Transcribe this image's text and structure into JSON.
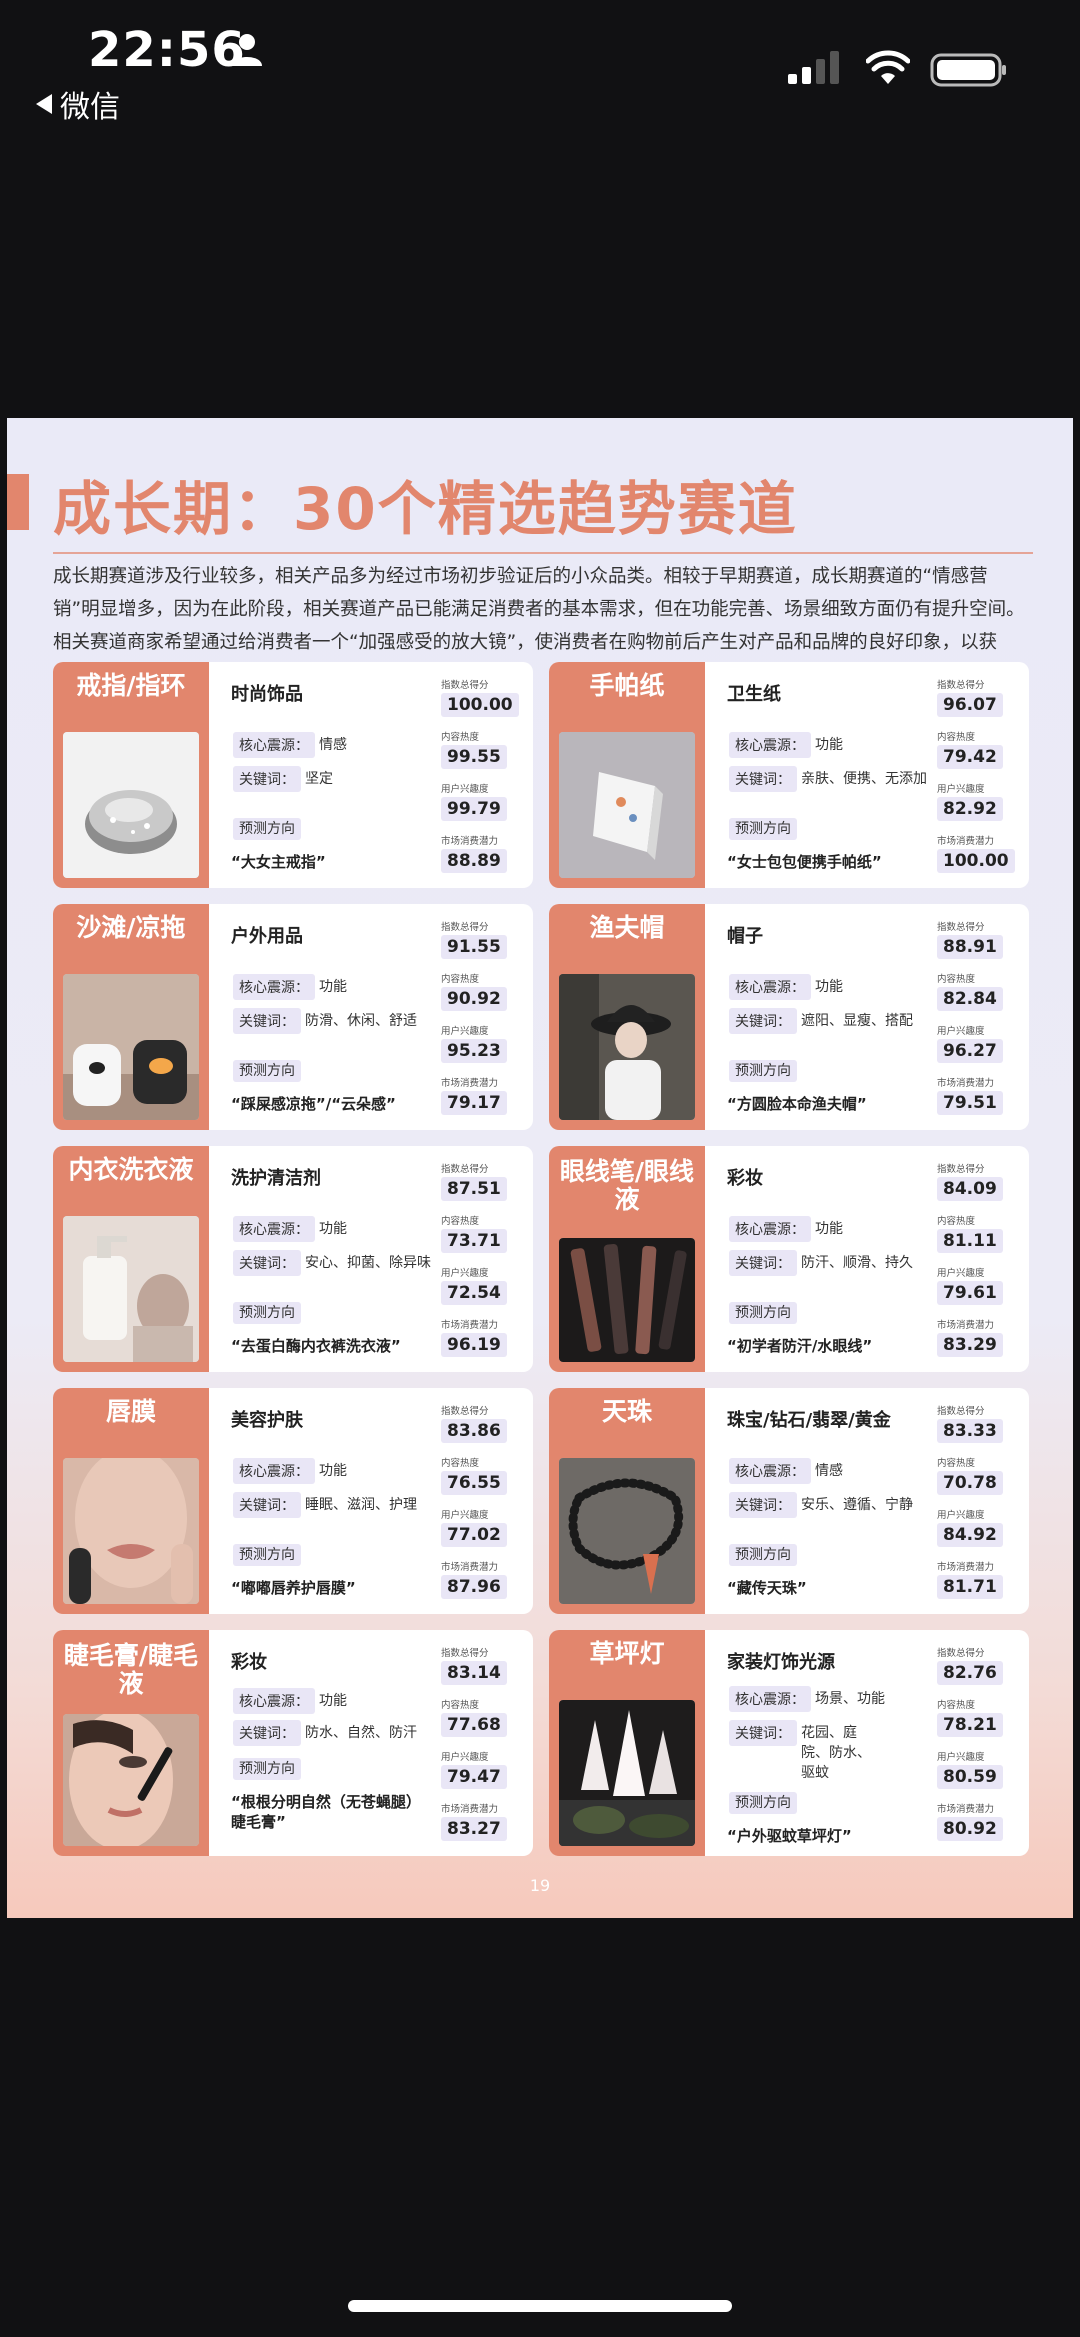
{
  "status_bar": {
    "time": "22:56",
    "back_label": "微信",
    "icons": [
      "person-icon",
      "signal-icon",
      "wifi-icon",
      "battery-icon"
    ]
  },
  "colors": {
    "accent": "#e2866d",
    "tag_bg": "#e9e6f6",
    "background": "#111113"
  },
  "page": {
    "title": "成长期：30个精选趋势赛道",
    "intro": "成长期赛道涉及行业较多，相关产品多为经过市场初步验证后的小众品类。相较于早期赛道，成长期赛道的“情感营销”明显增多，因为在此阶段，相关赛道产品已能满足消费者的基本需求，但在功能完善、场景细致方面仍有提升空间。相关赛道商家希望通过给消费者一个“加强感受的放大镜”，使消费者在购物前后产生对产品和品牌的良好印象，以获得“加分”。",
    "labels": {
      "core_label": "核心震源：",
      "keyword_label": "关键词：",
      "forecast_label": "预测方向",
      "total_label": "指数总得分",
      "heat_label": "内容热度",
      "interest_label": "用户兴趣度",
      "potential_label": "市场消费潜力"
    },
    "page_number": "19"
  },
  "cards": [
    {
      "category": "戒指/指环",
      "industry": "时尚饰品",
      "core": "情感",
      "keywords": "坚定",
      "prediction": "“大女主戒指”",
      "total": "100.00",
      "heat": "99.55",
      "interest": "99.79",
      "potential": "88.89"
    },
    {
      "category": "手帕纸",
      "industry": "卫生纸",
      "core": "功能",
      "keywords": "亲肤、便携、无添加",
      "prediction": "“女士包包便携手帕纸”",
      "total": "96.07",
      "heat": "79.42",
      "interest": "82.92",
      "potential": "100.00"
    },
    {
      "category": "沙滩/凉拖",
      "industry": "户外用品",
      "core": "功能",
      "keywords": "防滑、休闲、舒适",
      "prediction": "“踩屎感凉拖”/“云朵感”",
      "total": "91.55",
      "heat": "90.92",
      "interest": "95.23",
      "potential": "79.17"
    },
    {
      "category": "渔夫帽",
      "industry": "帽子",
      "core": "功能",
      "keywords": "遮阳、显瘦、搭配",
      "prediction": "“方圆脸本命渔夫帽”",
      "total": "88.91",
      "heat": "82.84",
      "interest": "96.27",
      "potential": "79.51"
    },
    {
      "category": "内衣洗衣液",
      "industry": "洗护清洁剂",
      "core": "功能",
      "keywords": "安心、抑菌、除异味",
      "prediction": "“去蛋白酶内衣裤洗衣液”",
      "total": "87.51",
      "heat": "73.71",
      "interest": "72.54",
      "potential": "96.19"
    },
    {
      "category": "眼线笔/眼线液",
      "industry": "彩妆",
      "core": "功能",
      "keywords": "防汗、顺滑、持久",
      "prediction": "“初学者防汗/水眼线”",
      "total": "84.09",
      "heat": "81.11",
      "interest": "79.61",
      "potential": "83.29"
    },
    {
      "category": "唇膜",
      "industry": "美容护肤",
      "core": "功能",
      "keywords": "睡眠、滋润、护理",
      "prediction": "“嘟嘟唇养护唇膜”",
      "total": "83.86",
      "heat": "76.55",
      "interest": "77.02",
      "potential": "87.96"
    },
    {
      "category": "天珠",
      "industry": "珠宝/钻石/翡翠/黄金",
      "core": "情感",
      "keywords": "安乐、遵循、宁静",
      "prediction": "“藏传天珠”",
      "total": "83.33",
      "heat": "70.78",
      "interest": "84.92",
      "potential": "81.71"
    },
    {
      "category": "睫毛膏/睫毛液",
      "industry": "彩妆",
      "core": "功能",
      "keywords": "防水、自然、防汗",
      "prediction": "“根根分明自然（无苍蝇腿）睫毛膏”",
      "total": "83.14",
      "heat": "77.68",
      "interest": "79.47",
      "potential": "83.27"
    },
    {
      "category": "草坪灯",
      "industry": "家装灯饰光源",
      "core": "场景、功能",
      "keywords": "花园、庭院、防水、驱蚊",
      "prediction": "“户外驱蚊草坪灯”",
      "total": "82.76",
      "heat": "78.21",
      "interest": "80.59",
      "potential": "80.92"
    }
  ]
}
